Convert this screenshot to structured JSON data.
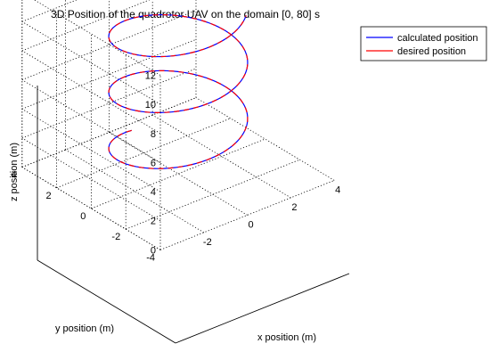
{
  "chart_data": {
    "type": "line",
    "title": "3D Position of the quadrotor UAV on the domain [0, 80] s",
    "xlabel": "x position (m)",
    "ylabel": "y position (m)",
    "zlabel": "z position (m)",
    "xlim": [
      -4,
      4
    ],
    "ylim": [
      -4,
      4
    ],
    "zlim": [
      0,
      12
    ],
    "xticks": [
      "-2",
      "0",
      "2",
      "4"
    ],
    "yticks": [
      "4",
      "2",
      "0",
      "-2",
      "-4"
    ],
    "zticks": [
      "0",
      "2",
      "4",
      "6",
      "8",
      "10",
      "12"
    ],
    "grid": true,
    "legend_position": "top-right, outside plot",
    "series": [
      {
        "name": "calculated position",
        "color": "#0000ff",
        "radius": 2.5,
        "center": [
          0,
          0
        ],
        "z_range": [
          1.3,
          11.3
        ],
        "turns": 2.6
      },
      {
        "name": "desired position",
        "color": "#ff0000",
        "radius": 2.5,
        "center": [
          0,
          0
        ],
        "z_range": [
          1.3,
          11.3
        ],
        "turns": 2.6
      }
    ]
  }
}
